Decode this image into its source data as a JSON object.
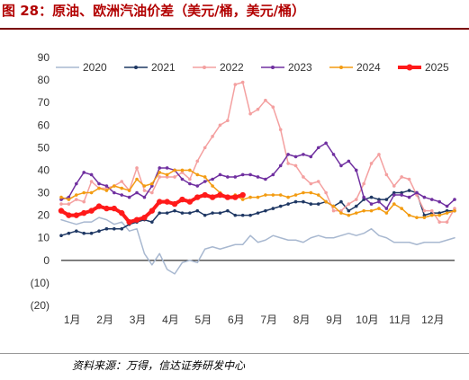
{
  "header": {
    "title": "图 28：原油、欧洲汽油价差（美元/桶，美元/桶）"
  },
  "footer": {
    "source": "资料来源：万得，信达证券研发中心"
  },
  "colors": {
    "title": "#b20000",
    "s2020": "#a8b8d0",
    "s2021": "#1f3864",
    "s2022": "#f4a0a0",
    "s2023": "#7030a0",
    "s2024": "#f39c12",
    "s2025": "#ff1a1a",
    "negative_tick": "#c00000"
  },
  "chart_data": {
    "type": "line",
    "title": "",
    "xlabel": "",
    "ylabel": "",
    "xlim": [
      0,
      52
    ],
    "ylim": [
      -20,
      90
    ],
    "yticks": [
      90,
      80,
      70,
      60,
      50,
      40,
      30,
      20,
      10,
      0,
      -10,
      -20
    ],
    "ytick_labels": [
      "90",
      "80",
      "70",
      "60",
      "50",
      "40",
      "30",
      "20",
      "10",
      "0",
      "(10)",
      "(20)"
    ],
    "x_tick_labels": [
      "1月",
      "2月",
      "3月",
      "4月",
      "5月",
      "6月",
      "7月",
      "8月",
      "9月",
      "10月",
      "11月",
      "12月"
    ],
    "grid": false,
    "legend": "top",
    "series": [
      {
        "name": "2020",
        "key": "s2020",
        "marker": "none",
        "points": [
          [
            0,
            18
          ],
          [
            1,
            17
          ],
          [
            2,
            16
          ],
          [
            3,
            17
          ],
          [
            4,
            17
          ],
          [
            5,
            19
          ],
          [
            6,
            18
          ],
          [
            7,
            16
          ],
          [
            8,
            17
          ],
          [
            9,
            13
          ],
          [
            10,
            14
          ],
          [
            11,
            3
          ],
          [
            12,
            -2
          ],
          [
            13,
            3
          ],
          [
            14,
            -4
          ],
          [
            15,
            -6
          ],
          [
            16,
            -1
          ],
          [
            17,
            0
          ],
          [
            18,
            -1
          ],
          [
            19,
            5
          ],
          [
            20,
            6
          ],
          [
            21,
            5
          ],
          [
            22,
            6
          ],
          [
            23,
            7
          ],
          [
            24,
            7
          ],
          [
            25,
            11
          ],
          [
            26,
            8
          ],
          [
            27,
            9
          ],
          [
            28,
            11
          ],
          [
            29,
            10
          ],
          [
            30,
            9
          ],
          [
            31,
            9
          ],
          [
            32,
            8
          ],
          [
            33,
            10
          ],
          [
            34,
            11
          ],
          [
            35,
            10
          ],
          [
            36,
            10
          ],
          [
            37,
            11
          ],
          [
            38,
            12
          ],
          [
            39,
            11
          ],
          [
            40,
            12
          ],
          [
            41,
            14
          ],
          [
            42,
            11
          ],
          [
            43,
            10
          ],
          [
            44,
            8
          ],
          [
            45,
            8
          ],
          [
            46,
            8
          ],
          [
            47,
            7
          ],
          [
            48,
            8
          ],
          [
            49,
            8
          ],
          [
            50,
            8
          ],
          [
            51,
            9
          ],
          [
            52,
            10
          ]
        ]
      },
      {
        "name": "2021",
        "key": "s2021",
        "marker": "dot",
        "points": [
          [
            0,
            11
          ],
          [
            1,
            12
          ],
          [
            2,
            13
          ],
          [
            3,
            12
          ],
          [
            4,
            12
          ],
          [
            5,
            13
          ],
          [
            6,
            14
          ],
          [
            7,
            14
          ],
          [
            8,
            14
          ],
          [
            9,
            16
          ],
          [
            10,
            17
          ],
          [
            11,
            18
          ],
          [
            12,
            17
          ],
          [
            13,
            21
          ],
          [
            14,
            21
          ],
          [
            15,
            22
          ],
          [
            16,
            21
          ],
          [
            17,
            21
          ],
          [
            18,
            22
          ],
          [
            19,
            20
          ],
          [
            20,
            21
          ],
          [
            21,
            21
          ],
          [
            22,
            22
          ],
          [
            23,
            20
          ],
          [
            24,
            20
          ],
          [
            25,
            20
          ],
          [
            26,
            21
          ],
          [
            27,
            22
          ],
          [
            28,
            23
          ],
          [
            29,
            24
          ],
          [
            30,
            25
          ],
          [
            31,
            26
          ],
          [
            32,
            26
          ],
          [
            33,
            25
          ],
          [
            34,
            25
          ],
          [
            35,
            26
          ],
          [
            36,
            24
          ],
          [
            37,
            26
          ],
          [
            38,
            22
          ],
          [
            39,
            24
          ],
          [
            40,
            27
          ],
          [
            41,
            28
          ],
          [
            42,
            27
          ],
          [
            43,
            27
          ],
          [
            44,
            30
          ],
          [
            45,
            30
          ],
          [
            46,
            31
          ],
          [
            47,
            30
          ],
          [
            48,
            20
          ],
          [
            49,
            21
          ],
          [
            50,
            21
          ],
          [
            51,
            22
          ],
          [
            52,
            22
          ]
        ]
      },
      {
        "name": "2022",
        "key": "s2022",
        "marker": "dot",
        "points": [
          [
            0,
            25
          ],
          [
            1,
            25
          ],
          [
            2,
            27
          ],
          [
            3,
            26
          ],
          [
            4,
            35
          ],
          [
            5,
            32
          ],
          [
            6,
            32
          ],
          [
            7,
            33
          ],
          [
            8,
            35
          ],
          [
            9,
            31
          ],
          [
            10,
            41
          ],
          [
            11,
            31
          ],
          [
            12,
            30
          ],
          [
            13,
            37
          ],
          [
            14,
            37
          ],
          [
            15,
            37
          ],
          [
            16,
            39
          ],
          [
            17,
            36
          ],
          [
            18,
            44
          ],
          [
            19,
            50
          ],
          [
            20,
            55
          ],
          [
            21,
            60
          ],
          [
            22,
            62
          ],
          [
            23,
            78
          ],
          [
            24,
            79
          ],
          [
            25,
            65
          ],
          [
            26,
            67
          ],
          [
            27,
            71
          ],
          [
            28,
            68
          ],
          [
            29,
            58
          ],
          [
            30,
            43
          ],
          [
            31,
            42
          ],
          [
            32,
            37
          ],
          [
            33,
            34
          ],
          [
            34,
            35
          ],
          [
            35,
            30
          ],
          [
            36,
            22
          ],
          [
            37,
            22
          ],
          [
            38,
            25
          ],
          [
            39,
            27
          ],
          [
            40,
            34
          ],
          [
            41,
            43
          ],
          [
            42,
            47
          ],
          [
            43,
            38
          ],
          [
            44,
            33
          ],
          [
            45,
            37
          ],
          [
            46,
            36
          ],
          [
            47,
            29
          ],
          [
            48,
            22
          ],
          [
            49,
            22
          ],
          [
            50,
            17
          ],
          [
            51,
            17
          ],
          [
            52,
            23
          ]
        ]
      },
      {
        "name": "2023",
        "key": "s2023",
        "marker": "dot",
        "points": [
          [
            0,
            27
          ],
          [
            1,
            28
          ],
          [
            2,
            34
          ],
          [
            3,
            39
          ],
          [
            4,
            38
          ],
          [
            5,
            34
          ],
          [
            6,
            33
          ],
          [
            7,
            30
          ],
          [
            8,
            29
          ],
          [
            9,
            28
          ],
          [
            10,
            30
          ],
          [
            11,
            28
          ],
          [
            12,
            33
          ],
          [
            13,
            41
          ],
          [
            14,
            41
          ],
          [
            15,
            40
          ],
          [
            16,
            36
          ],
          [
            17,
            34
          ],
          [
            18,
            33
          ],
          [
            19,
            35
          ],
          [
            20,
            36
          ],
          [
            21,
            38
          ],
          [
            22,
            37
          ],
          [
            23,
            37
          ],
          [
            24,
            38
          ],
          [
            25,
            38
          ],
          [
            26,
            37
          ],
          [
            27,
            36
          ],
          [
            28,
            38
          ],
          [
            29,
            42
          ],
          [
            30,
            47
          ],
          [
            31,
            46
          ],
          [
            32,
            47
          ],
          [
            33,
            46
          ],
          [
            34,
            50
          ],
          [
            35,
            52
          ],
          [
            36,
            47
          ],
          [
            37,
            42
          ],
          [
            38,
            44
          ],
          [
            39,
            40
          ],
          [
            40,
            28
          ],
          [
            41,
            25
          ],
          [
            42,
            26
          ],
          [
            43,
            23
          ],
          [
            44,
            29
          ],
          [
            45,
            29
          ],
          [
            46,
            28
          ],
          [
            47,
            30
          ],
          [
            48,
            28
          ],
          [
            49,
            27
          ],
          [
            50,
            26
          ],
          [
            51,
            24
          ],
          [
            52,
            27
          ]
        ]
      },
      {
        "name": "2024",
        "key": "s2024",
        "marker": "dot",
        "points": [
          [
            0,
            28
          ],
          [
            1,
            27
          ],
          [
            2,
            29
          ],
          [
            3,
            30
          ],
          [
            4,
            30
          ],
          [
            5,
            32
          ],
          [
            6,
            31
          ],
          [
            7,
            33
          ],
          [
            8,
            32
          ],
          [
            9,
            31
          ],
          [
            10,
            36
          ],
          [
            11,
            33
          ],
          [
            12,
            34
          ],
          [
            13,
            39
          ],
          [
            14,
            38
          ],
          [
            15,
            40
          ],
          [
            16,
            40
          ],
          [
            17,
            40
          ],
          [
            18,
            38
          ],
          [
            19,
            37
          ],
          [
            20,
            33
          ],
          [
            21,
            30
          ],
          [
            22,
            28
          ],
          [
            23,
            29
          ],
          [
            24,
            27
          ],
          [
            25,
            28
          ],
          [
            26,
            28
          ],
          [
            27,
            29
          ],
          [
            28,
            29
          ],
          [
            29,
            29
          ],
          [
            30,
            28
          ],
          [
            31,
            29
          ],
          [
            32,
            30
          ],
          [
            33,
            30
          ],
          [
            34,
            29
          ],
          [
            35,
            26
          ],
          [
            36,
            24
          ],
          [
            37,
            21
          ],
          [
            38,
            20
          ],
          [
            39,
            21
          ],
          [
            40,
            22
          ],
          [
            41,
            22
          ],
          [
            42,
            23
          ],
          [
            43,
            21
          ],
          [
            44,
            25
          ],
          [
            45,
            23
          ],
          [
            46,
            20
          ],
          [
            47,
            19
          ],
          [
            48,
            19
          ],
          [
            49,
            20
          ],
          [
            50,
            20
          ],
          [
            51,
            21
          ],
          [
            52,
            22
          ]
        ]
      },
      {
        "name": "2025",
        "key": "s2025",
        "marker": "bigdot",
        "points": [
          [
            0,
            22
          ],
          [
            1,
            20
          ],
          [
            2,
            20
          ],
          [
            3,
            21
          ],
          [
            4,
            22
          ],
          [
            5,
            24
          ],
          [
            6,
            23
          ],
          [
            7,
            23
          ],
          [
            8,
            21
          ],
          [
            9,
            17
          ],
          [
            10,
            18
          ],
          [
            11,
            19
          ],
          [
            12,
            22
          ],
          [
            13,
            26
          ],
          [
            14,
            26
          ],
          [
            15,
            25
          ],
          [
            16,
            27
          ],
          [
            17,
            26
          ],
          [
            18,
            28
          ],
          [
            19,
            29
          ],
          [
            20,
            28
          ],
          [
            21,
            29
          ],
          [
            22,
            28
          ],
          [
            23,
            28
          ],
          [
            24,
            29
          ]
        ]
      }
    ]
  }
}
